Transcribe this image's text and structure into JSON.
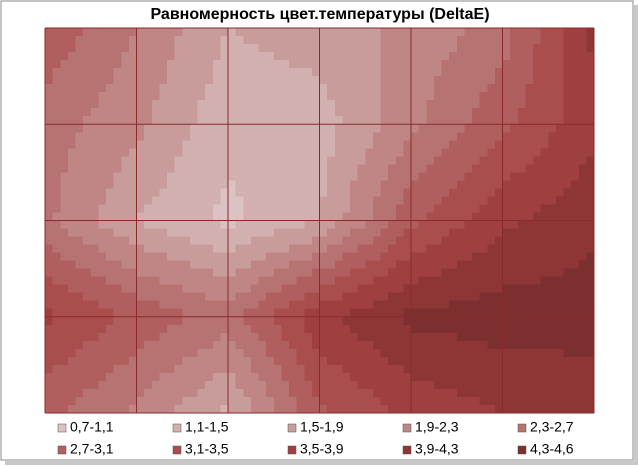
{
  "chart_data": {
    "type": "contour",
    "title": "Равномерность цвет.температуры (DeltaE)",
    "z": [
      [
        3.0,
        2.3,
        1.5,
        1.7,
        2.0,
        2.5,
        4.0
      ],
      [
        2.5,
        2.0,
        1.2,
        1.3,
        2.2,
        3.0,
        3.8
      ],
      [
        2.4,
        1.5,
        1.0,
        1.5,
        3.0,
        3.8,
        4.2
      ],
      [
        3.6,
        3.0,
        2.5,
        3.8,
        4.4,
        4.5,
        4.5
      ],
      [
        2.8,
        2.2,
        1.4,
        3.0,
        3.6,
        3.9,
        4.0
      ]
    ],
    "bands": [
      {
        "label": "0,7-1,1",
        "from": 0.7,
        "to": 1.1,
        "color": "#dcc2c2"
      },
      {
        "label": "1,1-1,5",
        "from": 1.1,
        "to": 1.5,
        "color": "#d3b0b0"
      },
      {
        "label": "1,5-1,9",
        "from": 1.5,
        "to": 1.9,
        "color": "#c99c9c"
      },
      {
        "label": "1,9-2,3",
        "from": 1.9,
        "to": 2.3,
        "color": "#c08686"
      },
      {
        "label": "2,3-2,7",
        "from": 2.3,
        "to": 2.7,
        "color": "#b77272"
      },
      {
        "label": "2,7-3,1",
        "from": 2.7,
        "to": 3.1,
        "color": "#b05e5e"
      },
      {
        "label": "3,1-3,5",
        "from": 3.1,
        "to": 3.5,
        "color": "#a94d4d"
      },
      {
        "label": "3,5-3,9",
        "from": 3.5,
        "to": 3.9,
        "color": "#a03f3f"
      },
      {
        "label": "3,9-4,3",
        "from": 3.9,
        "to": 4.3,
        "color": "#8e3535"
      },
      {
        "label": "4,3-4,6",
        "from": 4.3,
        "to": 4.6,
        "color": "#7c2f2f"
      }
    ],
    "grid": true
  }
}
